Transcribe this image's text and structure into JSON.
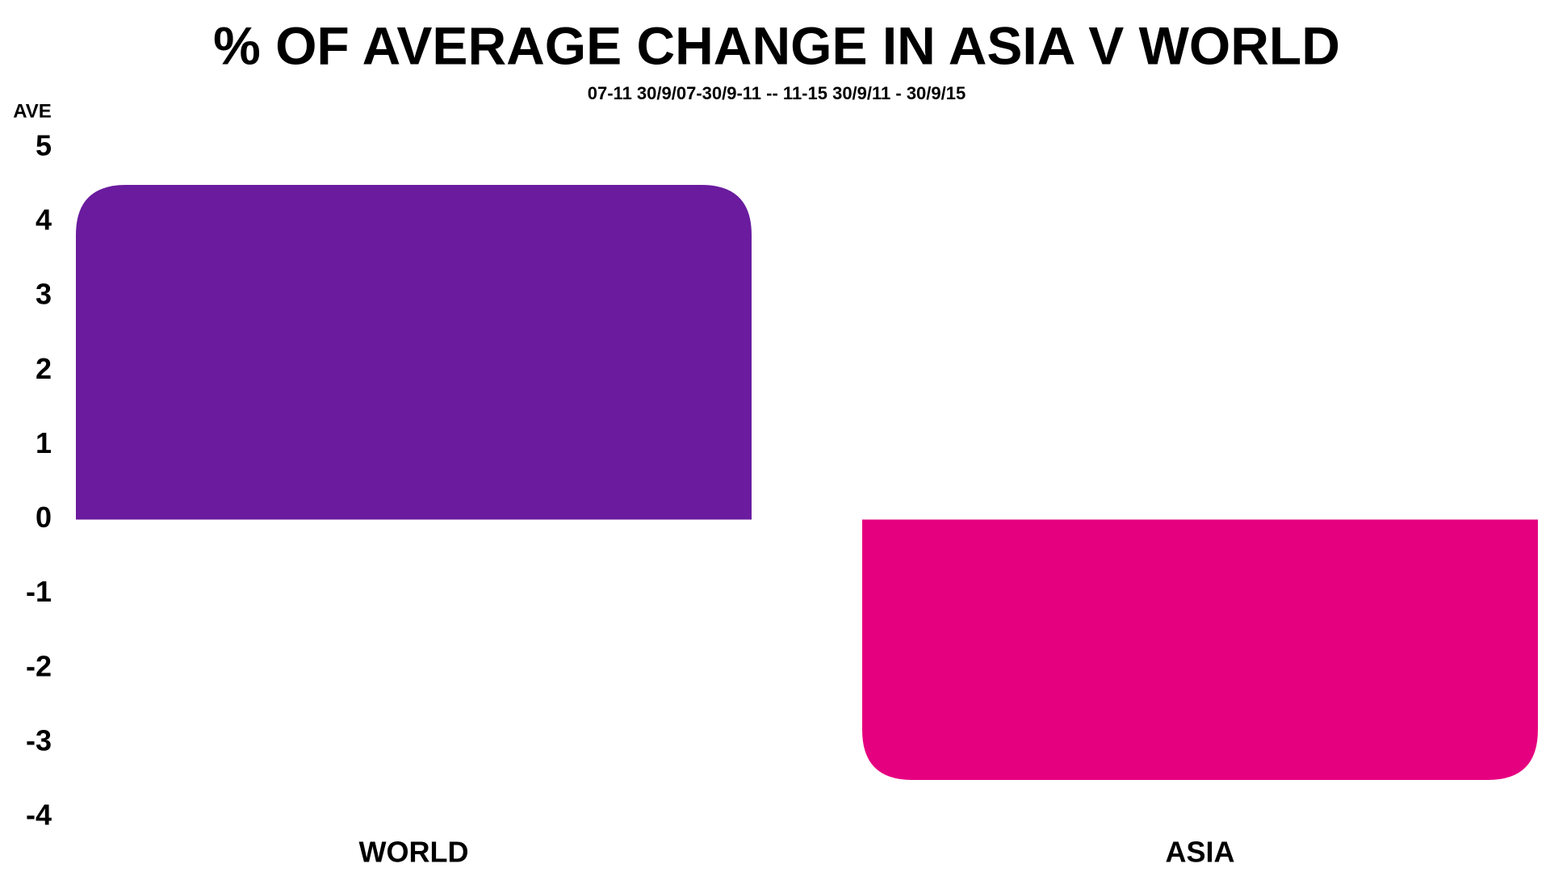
{
  "chart_data": {
    "type": "bar",
    "title": "% OF AVERAGE CHANGE IN ASIA V WORLD",
    "subtitle": "07-11 30/9/07-30/9-11  -- 11-15 30/9/11 - 30/9/15",
    "y_label": "AVE",
    "categories": [
      "WORLD",
      "ASIA"
    ],
    "values": [
      4.5,
      -3.5
    ],
    "colors": [
      "#6a1b9e",
      "#e5007f"
    ],
    "ylim": [
      -4,
      5
    ],
    "yticks": [
      -4,
      -3,
      -2,
      -1,
      0,
      1,
      2,
      3,
      4,
      5
    ],
    "grid": false
  }
}
